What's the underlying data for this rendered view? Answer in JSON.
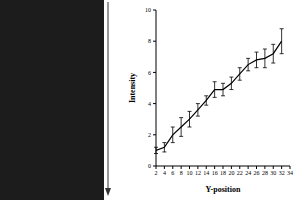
{
  "chart_data": {
    "type": "line",
    "x_label": "Y-position",
    "y_label": "Intensity",
    "x": [
      2,
      4,
      6,
      8,
      10,
      12,
      14,
      16,
      18,
      20,
      22,
      24,
      26,
      28,
      30,
      32
    ],
    "series": [
      {
        "name": "Intensity",
        "color": "#000000",
        "values": [
          1.0,
          1.2,
          2.0,
          2.5,
          3.0,
          3.6,
          4.2,
          4.9,
          4.9,
          5.3,
          5.9,
          6.5,
          6.8,
          6.9,
          7.2,
          8.0
        ],
        "errors": [
          0.2,
          0.3,
          0.5,
          0.6,
          0.5,
          0.4,
          0.3,
          0.5,
          0.4,
          0.4,
          0.4,
          0.4,
          0.5,
          0.6,
          0.6,
          0.8
        ]
      }
    ],
    "xlim": [
      2,
      34
    ],
    "xticks": [
      2,
      4,
      6,
      8,
      10,
      12,
      14,
      16,
      18,
      20,
      22,
      24,
      26,
      28,
      30,
      32,
      34
    ],
    "ylim": [
      0,
      10
    ],
    "yticks": [
      0,
      2,
      4,
      6,
      8,
      10
    ],
    "grid": false
  }
}
